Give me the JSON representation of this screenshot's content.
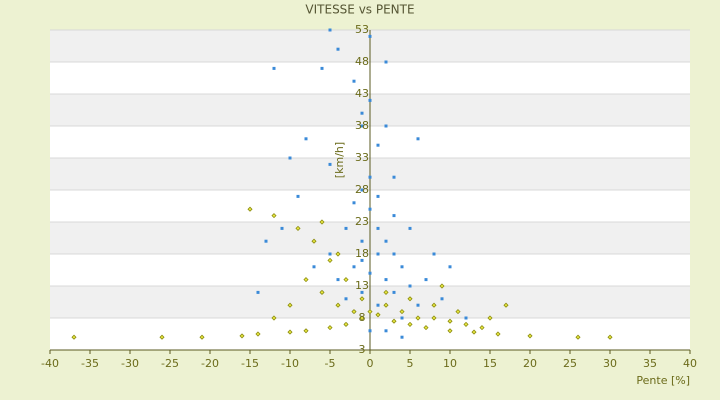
{
  "chart_data": {
    "type": "scatter",
    "title": "VITESSE vs PENTE",
    "x_label": "Pente [%]",
    "y_label": "[km/h]",
    "xlim": [
      -40,
      40
    ],
    "xticks": [
      -40,
      -35,
      -30,
      -25,
      -20,
      -15,
      -10,
      -5,
      0,
      5,
      10,
      15,
      20,
      25,
      30,
      35,
      40
    ],
    "ylim": [
      3,
      53
    ],
    "yticks": [
      3,
      8,
      13,
      18,
      23,
      28,
      33,
      38,
      43,
      48,
      53
    ],
    "grid": true,
    "series": [
      {
        "color": "#3a8ad8",
        "x": [
          0,
          1,
          -1,
          2,
          -2,
          3,
          -3,
          0,
          1,
          -1,
          4,
          -4,
          2,
          -2,
          5,
          -5,
          0,
          1,
          -1,
          3,
          -3,
          6,
          -6,
          7,
          -7,
          0,
          -2,
          -4,
          -6,
          2,
          -12,
          -8,
          -10,
          8,
          10,
          12,
          -13,
          -14,
          4,
          -3,
          0,
          2,
          -1,
          1,
          3,
          6,
          -9,
          -11,
          5,
          9,
          -5,
          0,
          -5,
          -1,
          2,
          4,
          -2,
          1,
          -1,
          3
        ],
        "values": [
          15,
          18,
          20,
          14,
          16,
          12,
          22,
          25,
          10,
          12,
          16,
          14,
          20,
          26,
          13,
          18,
          30,
          35,
          38,
          24,
          11,
          10,
          12,
          14,
          16,
          42,
          45,
          50,
          47,
          48,
          47,
          36,
          33,
          18,
          16,
          8,
          20,
          12,
          8,
          7,
          6,
          6,
          28,
          27,
          30,
          36,
          27,
          22,
          22,
          11,
          32,
          52,
          53,
          40,
          38,
          5,
          9,
          22,
          17,
          18
        ]
      },
      {
        "color": "#8c8c10",
        "x": [
          -37,
          -26,
          -21,
          -16,
          -14,
          -10,
          -8,
          -5,
          -3,
          -1,
          0,
          1,
          3,
          5,
          7,
          10,
          13,
          16,
          20,
          26,
          30,
          2,
          4,
          6,
          8,
          10,
          12,
          14,
          -1,
          -3,
          -5,
          -7,
          -9,
          -12,
          -15,
          -8,
          -6,
          -4,
          -2,
          2,
          5,
          8,
          11,
          15,
          17,
          -10,
          -12,
          -4,
          -6,
          9
        ],
        "values": [
          5,
          5,
          5,
          5.2,
          5.5,
          5.8,
          6,
          6.5,
          7,
          8,
          9,
          8.5,
          7.5,
          7,
          6.5,
          6,
          5.8,
          5.5,
          5.2,
          5,
          5,
          10,
          9,
          8,
          8,
          7.5,
          7,
          6.5,
          11,
          14,
          17,
          20,
          22,
          24,
          25,
          14,
          12,
          10,
          9,
          12,
          11,
          10,
          9,
          8,
          10,
          10,
          8,
          18,
          23,
          13
        ]
      }
    ]
  }
}
